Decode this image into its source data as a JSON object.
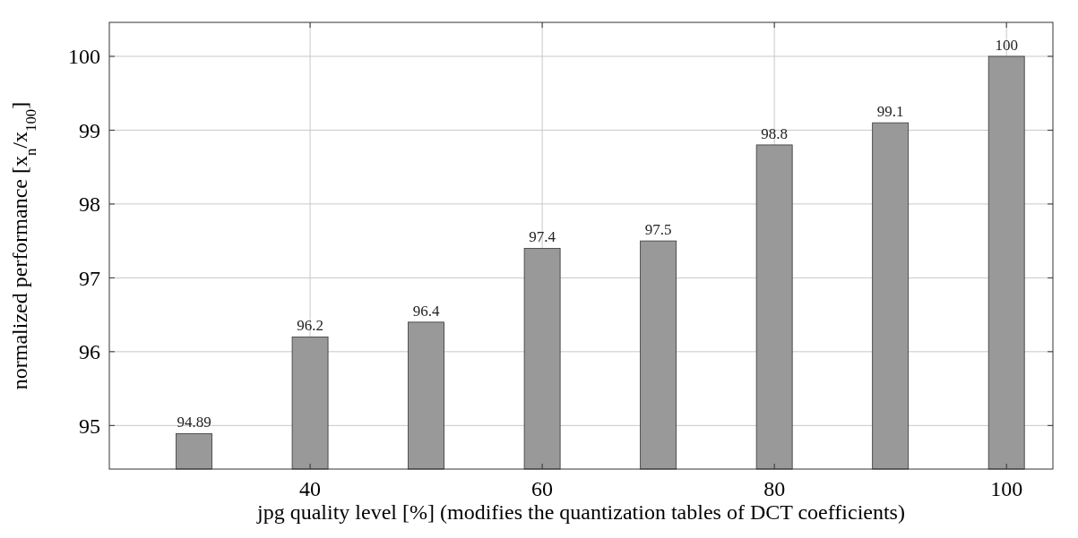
{
  "chart_data": {
    "type": "bar",
    "xlabel": "jpg quality level [%] (modifies the quantization tables of DCT coefficients)",
    "ylabel": "normalized performance [x$_{n}$/x$_{100}$]",
    "x": [
      30,
      40,
      50,
      60,
      70,
      80,
      90,
      100
    ],
    "values": [
      94.89,
      96.2,
      96.4,
      97.4,
      97.5,
      98.8,
      99.1,
      100
    ],
    "color": "#999999",
    "xlim": [
      22.7,
      104
    ],
    "ylim": [
      94.41,
      100.46
    ],
    "xticks": [
      40,
      60,
      80,
      100
    ],
    "yticks": [
      95,
      96,
      97,
      98,
      99,
      100
    ],
    "grid": true,
    "data_labels": true
  }
}
